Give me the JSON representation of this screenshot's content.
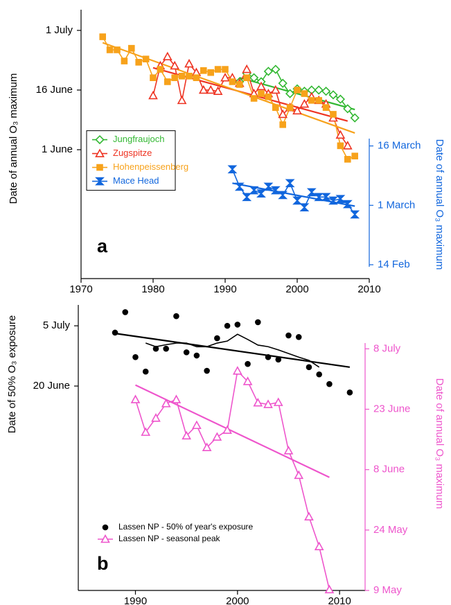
{
  "chart_data": [
    {
      "type": "line",
      "panel_label": "a",
      "ylabel": "Date of annual O₃ maximum",
      "y2label": "Date of annual O₃ maximum",
      "y2color": "#1166dd",
      "xlim": [
        1970,
        2010
      ],
      "xticks": [
        1970,
        1980,
        1990,
        2000,
        2010
      ],
      "ylim": [
        119.6,
        187.2
      ],
      "yticks": [
        {
          "value": 152,
          "label": "1 June"
        },
        {
          "value": 167,
          "label": "16 June"
        },
        {
          "value": 182,
          "label": "1 July"
        }
      ],
      "y2lim": [
        41.5,
        109.4
      ],
      "y2ticks": [
        {
          "value": 45,
          "label": "14 Feb"
        },
        {
          "value": 60,
          "label": "1 March"
        },
        {
          "value": 75,
          "label": "16 March"
        }
      ],
      "legend": "center left",
      "legend_box": true,
      "legend_text_colored": true,
      "series": [
        {
          "name": "Jungfraujoch",
          "color": "#33b833",
          "marker": "diamond",
          "filled": false,
          "line": true,
          "x": [
            1992,
            1993,
            1994,
            1995,
            1996,
            1997,
            1998,
            1999,
            2000,
            2001,
            2002,
            2003,
            2004,
            2005,
            2006,
            2007,
            2008
          ],
          "values": [
            169.1,
            171.2,
            170.1,
            169.1,
            171.7,
            172.2,
            168.7,
            166.1,
            167.3,
            166.7,
            167,
            167,
            166.7,
            165.8,
            164.7,
            162.3,
            160
          ],
          "trend": {
            "x": [
              1992,
              2008
            ],
            "values": [
              170.1,
              162.1
            ]
          }
        },
        {
          "name": "Zugspitze",
          "color": "#ee3322",
          "marker": "triangle",
          "filled": false,
          "line": true,
          "x": [
            1980,
            1981,
            1982,
            1983,
            1984,
            1985,
            1986,
            1987,
            1988,
            1989,
            1990,
            1991,
            1992,
            1993,
            1994,
            1995,
            1996,
            1997,
            1998,
            1999,
            2000,
            2001,
            2002,
            2003,
            2004,
            2005,
            2006,
            2007
          ],
          "values": [
            165.6,
            173.1,
            175.4,
            173.1,
            164.4,
            173.6,
            171.4,
            167,
            167,
            166.7,
            170.1,
            170.1,
            168.7,
            172.2,
            166.1,
            167.9,
            166.1,
            167,
            160.9,
            162.6,
            161.8,
            163.5,
            165.3,
            164.4,
            163.5,
            160,
            155.7,
            153
          ],
          "trend": {
            "x": [
              1980,
              2007
            ],
            "values": [
              172.6,
              159.2
            ]
          }
        },
        {
          "name": "Hohenpeissenberg",
          "color": "#f7a21b",
          "marker": "square",
          "filled": true,
          "line": true,
          "x": [
            1973,
            1974,
            1975,
            1976,
            1977,
            1978,
            1979,
            1980,
            1981,
            1982,
            1983,
            1984,
            1985,
            1986,
            1987,
            1988,
            1989,
            1990,
            1991,
            1992,
            1993,
            1994,
            1995,
            1996,
            1997,
            1998,
            1999,
            2000,
            2001,
            2002,
            2003,
            2004,
            2005,
            2006,
            2007,
            2008
          ],
          "values": [
            180.4,
            177.1,
            177.1,
            174.3,
            177.5,
            174,
            174.8,
            170.1,
            172.2,
            169.1,
            170.1,
            170.5,
            170.5,
            170.1,
            171.9,
            171.4,
            172.2,
            172.2,
            169.1,
            168.4,
            170.1,
            164.9,
            166.1,
            165.3,
            162.6,
            158.3,
            162.6,
            167,
            166.1,
            164.4,
            164.4,
            162.6,
            160.9,
            153,
            149.6,
            150.4
          ],
          "trend": {
            "x": [
              1973,
              2008
            ],
            "values": [
              178.9,
              156.2
            ]
          }
        },
        {
          "name": "Mace Head",
          "color": "#1166dd",
          "marker": "bowtie",
          "filled": true,
          "line": true,
          "axis": "y2",
          "x": [
            1991,
            1992,
            1993,
            1994,
            1995,
            1996,
            1997,
            1998,
            1999,
            2000,
            2001,
            2002,
            2003,
            2004,
            2005,
            2006,
            2007,
            2008
          ],
          "values": [
            69.1,
            64.7,
            62.1,
            63.8,
            63,
            64.7,
            63.8,
            62.6,
            65.6,
            61.2,
            59.5,
            63.3,
            62.1,
            62.1,
            61.2,
            61.6,
            60.3,
            57.7
          ],
          "trend": {
            "x": [
              1991,
              2008
            ],
            "values": [
              65.6,
              59.8
            ]
          }
        }
      ]
    },
    {
      "type": "line",
      "panel_label": "b",
      "ylabel": "Date of 50% O₃ exposure",
      "y2label": "Date of annual O₃ maximum",
      "y2color": "#ee55cc",
      "xlim": [
        1984.4,
        2012.5
      ],
      "xticks": [
        1990,
        2000,
        2010
      ],
      "ylim": [
        120.1,
        191.2
      ],
      "yticks": [
        {
          "value": 171,
          "label": "20 June"
        },
        {
          "value": 186,
          "label": "5 July"
        }
      ],
      "y2lim": [
        129,
        199.9
      ],
      "y2ticks": [
        {
          "value": 129,
          "label": "9 May"
        },
        {
          "value": 144,
          "label": "24 May"
        },
        {
          "value": 159,
          "label": "8 June"
        },
        {
          "value": 174,
          "label": "23 June"
        },
        {
          "value": 189,
          "label": "8 July"
        }
      ],
      "legend": "lower left",
      "legend_box": false,
      "legend_text_colored": false,
      "series": [
        {
          "name": "Lassen NP - 50% of year's exposure",
          "color": "#000000",
          "marker": "circle",
          "filled": true,
          "line": false,
          "x": [
            1988,
            1989,
            1990,
            1991,
            1992,
            1993,
            1994,
            1995,
            1996,
            1997,
            1998,
            1999,
            2000,
            2001,
            2002,
            2003,
            2004,
            2005,
            2006,
            2007,
            2008,
            2009,
            2011
          ],
          "values": [
            184.3,
            189.4,
            178.2,
            174.6,
            180.3,
            180.3,
            188.4,
            179.4,
            178.6,
            174.8,
            182.9,
            186,
            186.3,
            176.5,
            186.9,
            178.2,
            177.6,
            183.6,
            183.2,
            175.7,
            173.9,
            171.5,
            169.4
          ],
          "smooth": {
            "x": [
              1991,
              1992,
              1993,
              1994,
              1995,
              1996,
              1997,
              1998,
              1999,
              2000,
              2001,
              2002,
              2003,
              2004,
              2005,
              2006,
              2007,
              2008
            ],
            "values": [
              181.7,
              180.8,
              181.3,
              181.7,
              181.7,
              180.8,
              180.8,
              181.7,
              182.2,
              183.9,
              182.6,
              181.2,
              180.8,
              180,
              179.1,
              178.2,
              177.4,
              175.7
            ]
          },
          "trend": {
            "x": [
              1988,
              2011
            ],
            "values": [
              184.1,
              175.7
            ]
          }
        },
        {
          "name": "Lassen NP - seasonal peak",
          "color": "#ee55cc",
          "marker": "triangle",
          "filled": false,
          "line": true,
          "axis": "y2",
          "x": [
            1990,
            1991,
            1992,
            1993,
            1994,
            1995,
            1996,
            1997,
            1998,
            1999,
            2000,
            2001,
            2002,
            2003,
            2004,
            2005,
            2006,
            2007,
            2008,
            2009
          ],
          "values": [
            176.4,
            168.3,
            171.8,
            175.4,
            176.4,
            167.4,
            170,
            164.5,
            167.1,
            168.8,
            183.5,
            180.9,
            175.6,
            175.2,
            175.7,
            163.7,
            157.6,
            147.3,
            139.9,
            129.2
          ],
          "trend": {
            "x": [
              1990,
              2009
            ],
            "values": [
              180,
              157.1
            ]
          }
        }
      ]
    }
  ]
}
